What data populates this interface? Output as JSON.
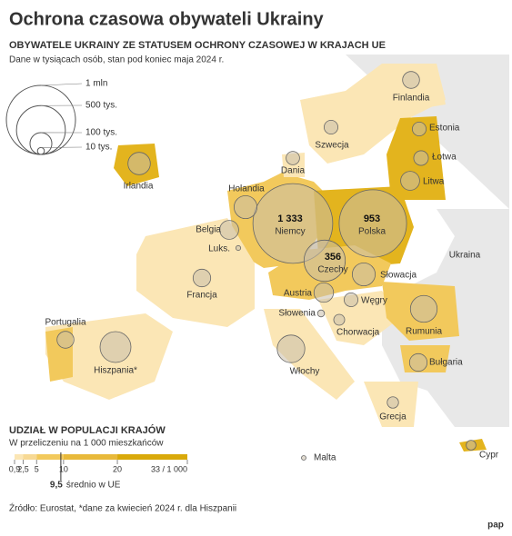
{
  "header": {
    "title": "Ochrona czasowa obywateli Ukrainy",
    "subtitle": "OBYWATELE UKRAINY ZE STATUSEM OCHRONY CZASOWEJ W KRAJACH UE",
    "note": "Dane w tysiącach osób, stan pod koniec maja 2024 r."
  },
  "size_legend": {
    "items": [
      {
        "value": 1000,
        "label": "1 mln"
      },
      {
        "value": 500,
        "label": "500 tys."
      },
      {
        "value": 100,
        "label": "100 tys."
      },
      {
        "value": 10,
        "label": "10 tys."
      }
    ]
  },
  "countries": [
    {
      "name": "Niemcy",
      "value": 1333,
      "value_label": "1 333"
    },
    {
      "name": "Polska",
      "value": 953
    },
    {
      "name": "Czechy",
      "value": 356
    },
    {
      "name": "Hiszpania*",
      "value": 200
    },
    {
      "name": "Włochy",
      "value": 160
    },
    {
      "name": "Rumunia",
      "value": 150
    },
    {
      "name": "Irlandia",
      "value": 105
    },
    {
      "name": "Holandia",
      "value": 110
    },
    {
      "name": "Słowacja",
      "value": 110
    },
    {
      "name": "Austria",
      "value": 80
    },
    {
      "name": "Litwa",
      "value": 75
    },
    {
      "name": "Belgia",
      "value": 75
    },
    {
      "name": "Francja",
      "value": 65
    },
    {
      "name": "Bułgaria",
      "value": 65
    },
    {
      "name": "Portugalia",
      "value": 60
    },
    {
      "name": "Finlandia",
      "value": 60
    },
    {
      "name": "Łotwa",
      "value": 45
    },
    {
      "name": "Estonia",
      "value": 40
    },
    {
      "name": "Szwecja",
      "value": 40
    },
    {
      "name": "Węgry",
      "value": 40
    },
    {
      "name": "Dania",
      "value": 38
    },
    {
      "name": "Grecja",
      "value": 27
    },
    {
      "name": "Chorwacja",
      "value": 25
    },
    {
      "name": "Cypr",
      "value": 20
    },
    {
      "name": "Słowenia",
      "value": 10
    },
    {
      "name": "Luks.",
      "value": 5
    },
    {
      "name": "Malta",
      "value": 2
    }
  ],
  "other_labels": [
    "Ukraina"
  ],
  "share_legend": {
    "title": "UDZIAŁ W POPULACJI KRAJÓW",
    "subtitle": "W przeliczeniu na 1 000 mieszkańców",
    "ticks": [
      {
        "value": 0.9,
        "label": "0,9"
      },
      {
        "value": 2.5,
        "label": "2,5"
      },
      5,
      10,
      20,
      {
        "value": 33,
        "label": "33 / 1 000"
      }
    ],
    "average": {
      "value": 9.5,
      "label": "9,5"
    },
    "average_text": "średnio w UE"
  },
  "source": "Źródło: Eurostat, *dane za kwiecień 2024 r. dla Hiszpanii",
  "logo": "pap"
}
